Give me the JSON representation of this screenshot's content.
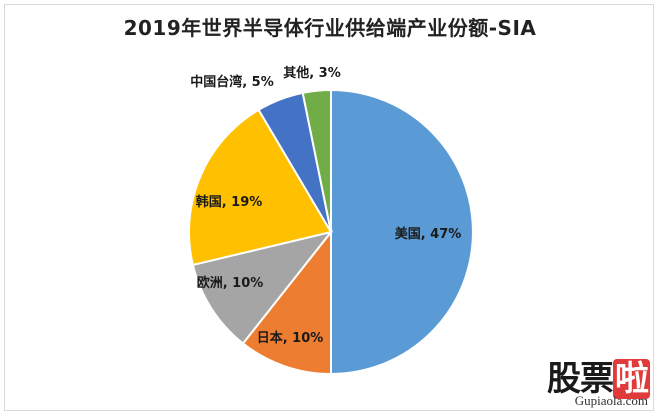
{
  "chart_data": {
    "type": "pie",
    "title": "2019年世界半导体行业供给端产业份额-SIA",
    "slices": [
      {
        "label": "美国",
        "value": 47,
        "display": "美国, 47%",
        "color": "#5b9bd5"
      },
      {
        "label": "日本",
        "value": 10,
        "display": "日本, 10%",
        "color": "#ed7d31"
      },
      {
        "label": "欧洲",
        "value": 10,
        "display": "欧洲, 10%",
        "color": "#a5a5a5"
      },
      {
        "label": "韩国",
        "value": 19,
        "display": "韩国, 19%",
        "color": "#ffc000"
      },
      {
        "label": "中国台湾",
        "value": 5,
        "display": "中国台湾, 5%",
        "color": "#4472c4"
      },
      {
        "label": "其他",
        "value": 3,
        "display": "其他, 3%",
        "color": "#70ad47"
      }
    ]
  },
  "watermark": {
    "brand_a": "股票",
    "brand_b": "啦",
    "url": "Gupiaola.com"
  }
}
